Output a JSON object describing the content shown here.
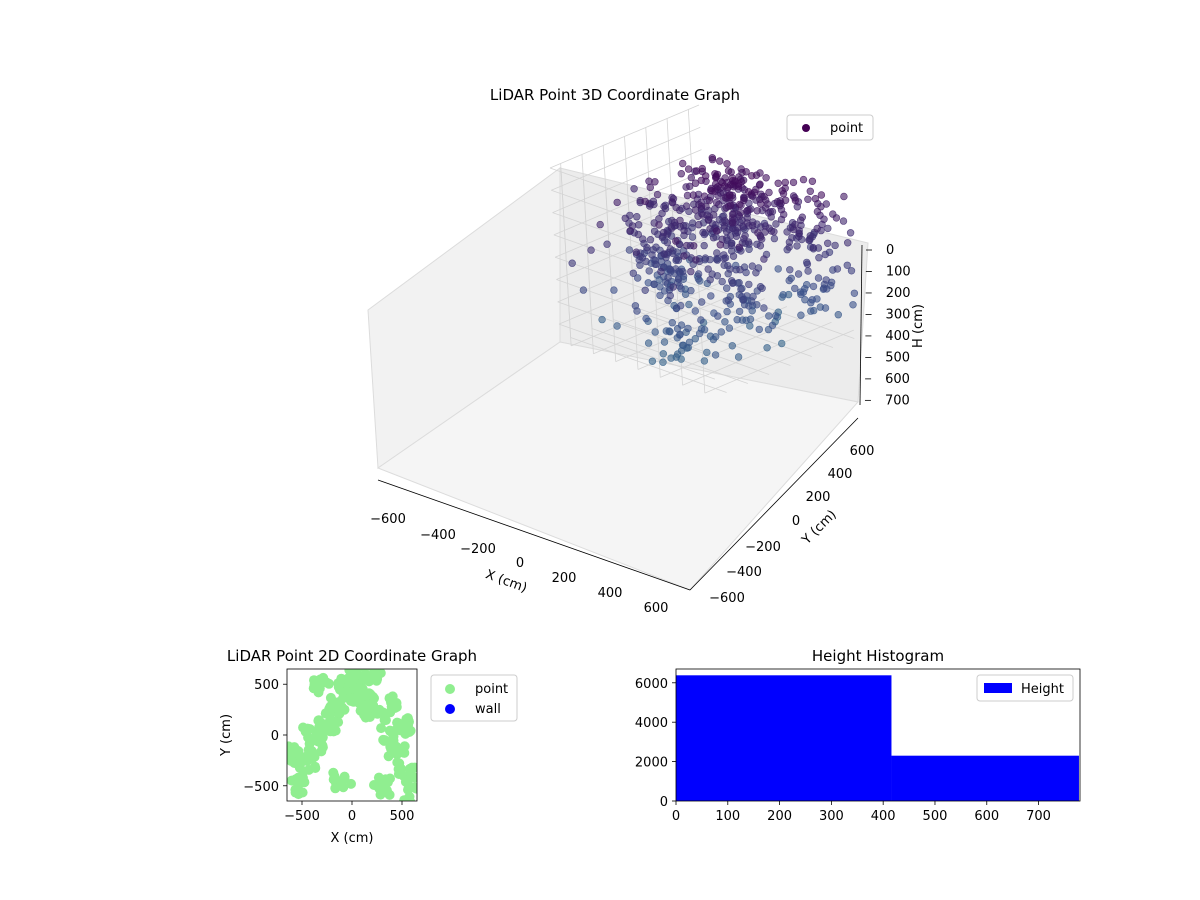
{
  "figure": {
    "background": "#ffffff"
  },
  "chart_data": [
    {
      "type": "scatter3d",
      "title": "LiDAR Point 3D Coordinate Graph",
      "xlabel": "X (cm)",
      "ylabel": "Y (cm)",
      "zlabel": "H (cm)",
      "xlim": [
        -700,
        700
      ],
      "ylim": [
        -700,
        700
      ],
      "zlim": [
        0,
        780
      ],
      "z_inverted": true,
      "x_ticks": [
        -600,
        -400,
        -200,
        0,
        200,
        400,
        600
      ],
      "y_ticks": [
        -600,
        -400,
        -200,
        0,
        200,
        400,
        600
      ],
      "z_ticks": [
        0,
        100,
        200,
        300,
        400,
        500,
        600,
        700
      ],
      "colormap": "viridis",
      "grid": true,
      "legend": {
        "position": "upper-right",
        "entries": [
          {
            "label": "point",
            "color": "#440154"
          }
        ]
      },
      "series": [
        {
          "name": "point",
          "clusters": [
            {
              "x": -150,
              "y": 300,
              "h_from": 80,
              "h_to": 420,
              "count": 90
            },
            {
              "x": 50,
              "y": 150,
              "h_from": 60,
              "h_to": 500,
              "count": 110
            },
            {
              "x": 200,
              "y": 350,
              "h_from": 100,
              "h_to": 380,
              "count": 60
            },
            {
              "x": -300,
              "y": -100,
              "h_from": 300,
              "h_to": 600,
              "count": 80
            },
            {
              "x": 500,
              "y": 500,
              "h_from": 100,
              "h_to": 650,
              "count": 90
            },
            {
              "x": 300,
              "y": -50,
              "h_from": 400,
              "h_to": 650,
              "count": 50
            },
            {
              "x": -500,
              "y": 100,
              "h_from": 150,
              "h_to": 700,
              "count": 60
            },
            {
              "x": 100,
              "y": -400,
              "h_from": 500,
              "h_to": 760,
              "count": 40
            }
          ]
        }
      ]
    },
    {
      "type": "scatter",
      "title": "LiDAR Point 2D Coordinate Graph",
      "xlabel": "X (cm)",
      "ylabel": "Y (cm)",
      "xlim": [
        -650,
        650
      ],
      "ylim": [
        -650,
        650
      ],
      "x_ticks": [
        -500,
        0,
        500
      ],
      "y_ticks": [
        -500,
        0,
        500
      ],
      "legend": {
        "position": "outside-right",
        "entries": [
          {
            "label": "point",
            "color": "#90ee90"
          },
          {
            "label": "wall",
            "color": "#0000ff"
          }
        ]
      },
      "series": [
        {
          "name": "point",
          "color": "#90ee90",
          "x": [
            -550,
            -450,
            -350,
            -250,
            -150,
            -50,
            50,
            150,
            250,
            350,
            450,
            550,
            -600,
            -400,
            -200,
            0,
            200,
            400,
            600,
            -300,
            -100,
            100,
            300,
            500
          ],
          "y": [
            -500,
            -300,
            -100,
            100,
            300,
            500,
            550,
            400,
            200,
            0,
            -200,
            -400,
            -200,
            0,
            200,
            400,
            600,
            300,
            -600,
            500,
            -450,
            250,
            -500,
            100
          ]
        },
        {
          "name": "wall",
          "color": "#0000ff",
          "x": [],
          "y": []
        }
      ]
    },
    {
      "type": "histogram",
      "title": "Height Histogram",
      "xlabel": "",
      "ylabel": "",
      "xlim": [
        0,
        780
      ],
      "ylim": [
        0,
        6700
      ],
      "x_ticks": [
        0,
        100,
        200,
        300,
        400,
        500,
        600,
        700
      ],
      "y_ticks": [
        0,
        2000,
        4000,
        6000
      ],
      "legend": {
        "position": "upper-right",
        "entries": [
          {
            "label": "Height",
            "color": "#0000ff"
          }
        ]
      },
      "bins": [
        {
          "from": 0,
          "to": 416,
          "count": 6380
        },
        {
          "from": 416,
          "to": 778,
          "count": 2300
        }
      ],
      "color": "#0000ff"
    }
  ]
}
